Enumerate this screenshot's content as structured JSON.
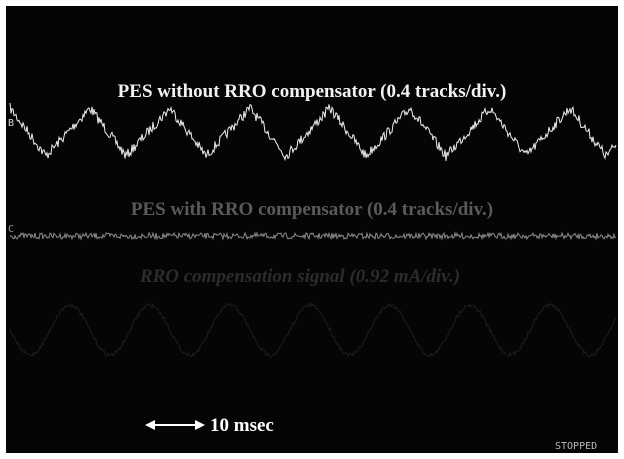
{
  "traces": [
    {
      "channel": "B",
      "label": "PES without RRO compensator (0.4 tracks/div.)"
    },
    {
      "channel": "C",
      "label": "PES with RRO compensator (0.4 tracks/div.)"
    },
    {
      "label": "RRO compensation signal (0.92 mA/div.)"
    }
  ],
  "time_scale": "10 msec",
  "status": "STOPPED"
}
